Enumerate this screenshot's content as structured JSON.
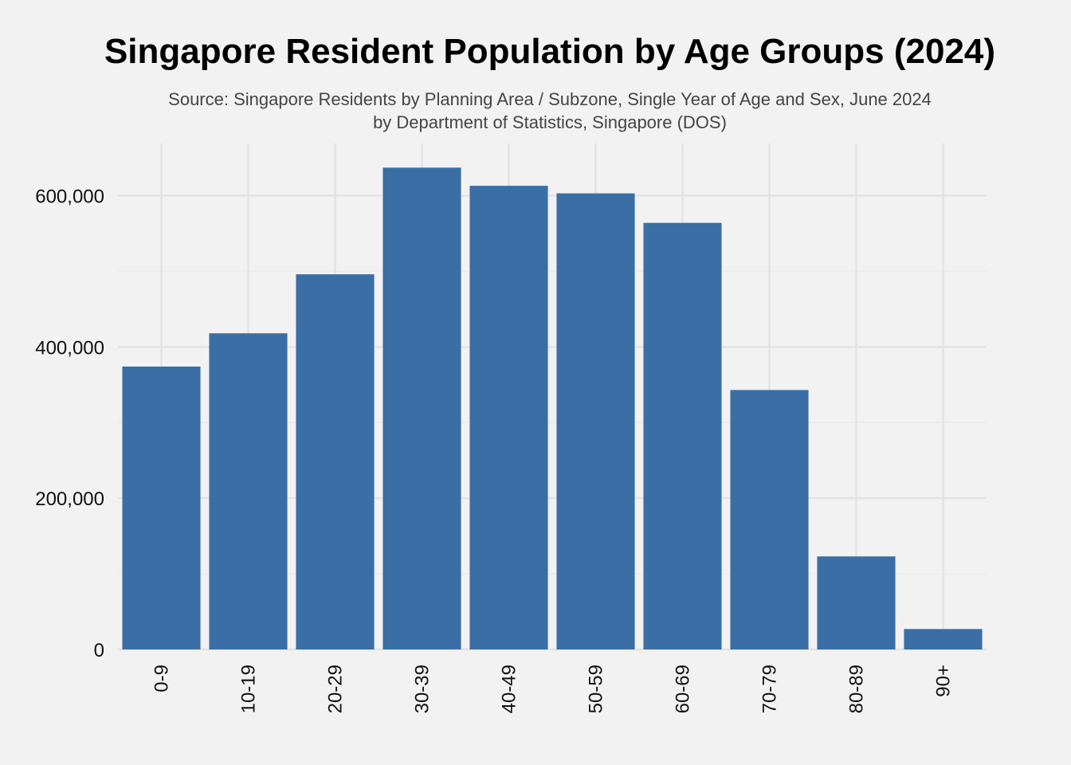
{
  "chart_data": {
    "type": "bar",
    "title": "Singapore Resident Population by Age Groups (2024)",
    "subtitle": [
      "Source: Singapore Residents by Planning Area / Subzone, Single Year of Age and Sex, June 2024",
      "by Department of Statistics, Singapore (DOS)"
    ],
    "xlabel": "",
    "ylabel": "",
    "categories": [
      "0-9",
      "10-19",
      "20-29",
      "30-39",
      "40-49",
      "50-59",
      "60-69",
      "70-79",
      "80-89",
      "90+"
    ],
    "values": [
      374000,
      418000,
      496000,
      637000,
      613000,
      603000,
      564000,
      343000,
      123000,
      27000
    ],
    "ylim": [
      0,
      670000
    ],
    "yticks": [
      0,
      200000,
      400000,
      600000
    ],
    "ytick_labels": [
      "0",
      "200,000",
      "400,000",
      "600,000"
    ],
    "grid": true,
    "legend": "none",
    "colors": {
      "bar": "#3a6ea5",
      "background": "#f2f2f2",
      "grid_major": "#e3e3e3",
      "grid_minor": "#ebebeb"
    }
  }
}
